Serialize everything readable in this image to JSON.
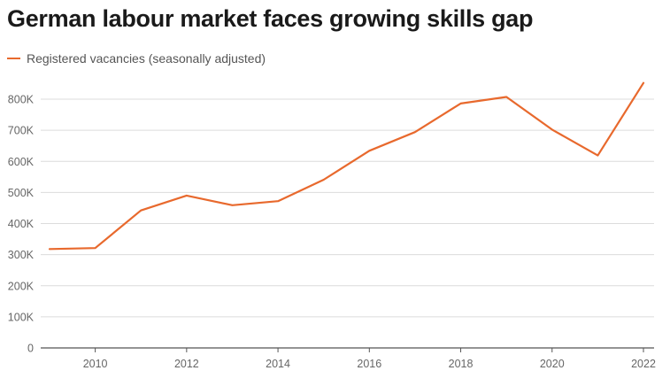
{
  "chart_data": {
    "type": "line",
    "title": "German labour market faces growing skills gap",
    "xlabel": "",
    "ylabel": "",
    "legend_position": "top-left",
    "grid": true,
    "xlim": [
      2009,
      2022
    ],
    "ylim": [
      0,
      850000
    ],
    "x_ticks": [
      2010,
      2012,
      2014,
      2016,
      2018,
      2020,
      2022
    ],
    "x_tick_labels": [
      "2010",
      "2012",
      "2014",
      "2016",
      "2018",
      "2020",
      "2022"
    ],
    "y_ticks": [
      0,
      100000,
      200000,
      300000,
      400000,
      500000,
      600000,
      700000,
      800000
    ],
    "y_tick_labels": [
      "0",
      "100K",
      "200K",
      "300K",
      "400K",
      "500K",
      "600K",
      "700K",
      "800K"
    ],
    "series": [
      {
        "name": "Registered vacancies (seasonally adjusted)",
        "color": "#e8692d",
        "x": [
          2009,
          2010,
          2011,
          2012,
          2013,
          2014,
          2015,
          2016,
          2017,
          2018,
          2019,
          2020,
          2021,
          2022
        ],
        "values": [
          318000,
          321000,
          442000,
          490000,
          459000,
          472000,
          541000,
          634000,
          694000,
          786000,
          807000,
          702000,
          619000,
          852000
        ]
      }
    ]
  }
}
